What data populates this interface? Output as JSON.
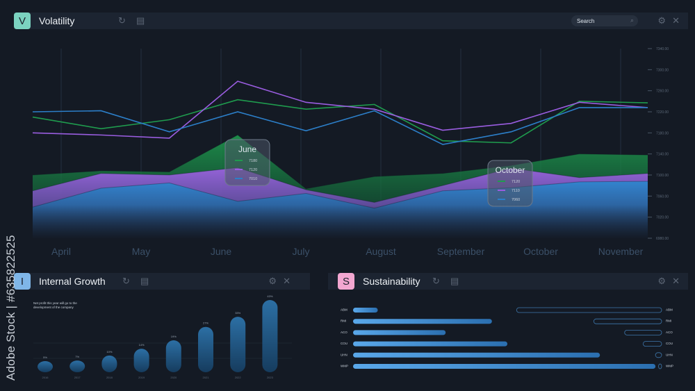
{
  "volatility": {
    "badge": "V",
    "badge_color": "#7bd3c0",
    "title": "Volatility",
    "search_label": "Search",
    "chart_data": {
      "type": "area",
      "categories": [
        "April",
        "May",
        "June",
        "July",
        "August",
        "September",
        "October",
        "November"
      ],
      "y_ticks": [
        "7340.00",
        "7300.00",
        "7260.00",
        "7220.00",
        "7180.00",
        "7140.00",
        "7100.00",
        "7060.00",
        "7020.00",
        "6980.00"
      ],
      "ylim": [
        6980,
        7340
      ],
      "series": [
        {
          "color": "#1f9c4e",
          "lines": [
            7210,
            7188,
            7205,
            7243,
            7225,
            7234,
            7165,
            7161,
            7240,
            7237
          ],
          "area": [
            7100,
            7108,
            7106,
            7176,
            7074,
            7097,
            7103,
            7118,
            7140,
            7138
          ]
        },
        {
          "color": "#9a5de0",
          "lines": [
            7180,
            7176,
            7170,
            7278,
            7238,
            7225,
            7185,
            7198,
            7238,
            7228
          ],
          "area": [
            7070,
            7103,
            7100,
            7114,
            7072,
            7048,
            7080,
            7113,
            7095,
            7103
          ]
        },
        {
          "color": "#2c7fc9",
          "lines": [
            7220,
            7222,
            7182,
            7220,
            7184,
            7222,
            7158,
            7182,
            7228,
            7228
          ],
          "area": [
            7039,
            7075,
            7085,
            7050,
            7065,
            7037,
            7070,
            7076,
            7087,
            7088
          ]
        }
      ],
      "tooltips": [
        {
          "label": "June",
          "values": [
            "7180",
            "7120",
            "7010"
          ]
        },
        {
          "label": "October",
          "values": [
            "7120",
            "7110",
            "7060"
          ]
        }
      ]
    }
  },
  "growth": {
    "badge": "I",
    "badge_color": "#7fb6e8",
    "title": "Internal Growth",
    "note": "Net profit this year will go to the development of the company",
    "chart_data": {
      "type": "bar",
      "categories": [
        "2016",
        "2017",
        "2018",
        "2019",
        "2020",
        "2021",
        "2022",
        "2023"
      ],
      "values": [
        5,
        7,
        10,
        14,
        19,
        27,
        33,
        43
      ],
      "labels": [
        "5%",
        "7%",
        "10%",
        "14%",
        "19%",
        "27%",
        "33%",
        "43%"
      ]
    }
  },
  "sustainability": {
    "badge": "S",
    "badge_color": "#f3a7d1",
    "title": "Sustainability",
    "chart_data": {
      "type": "bar",
      "categories": [
        "ABM",
        "RMI",
        "ACO",
        "COU",
        "UHN",
        "WMP"
      ],
      "values": [
        8,
        45,
        30,
        50,
        80,
        98
      ],
      "outline_values": [
        47,
        22,
        12,
        6,
        2,
        1
      ]
    }
  },
  "watermark": "Adobe Stock | #635822525",
  "icons": [
    "refresh-icon",
    "clipboard-icon",
    "gear-icon",
    "close-icon",
    "search-icon"
  ]
}
